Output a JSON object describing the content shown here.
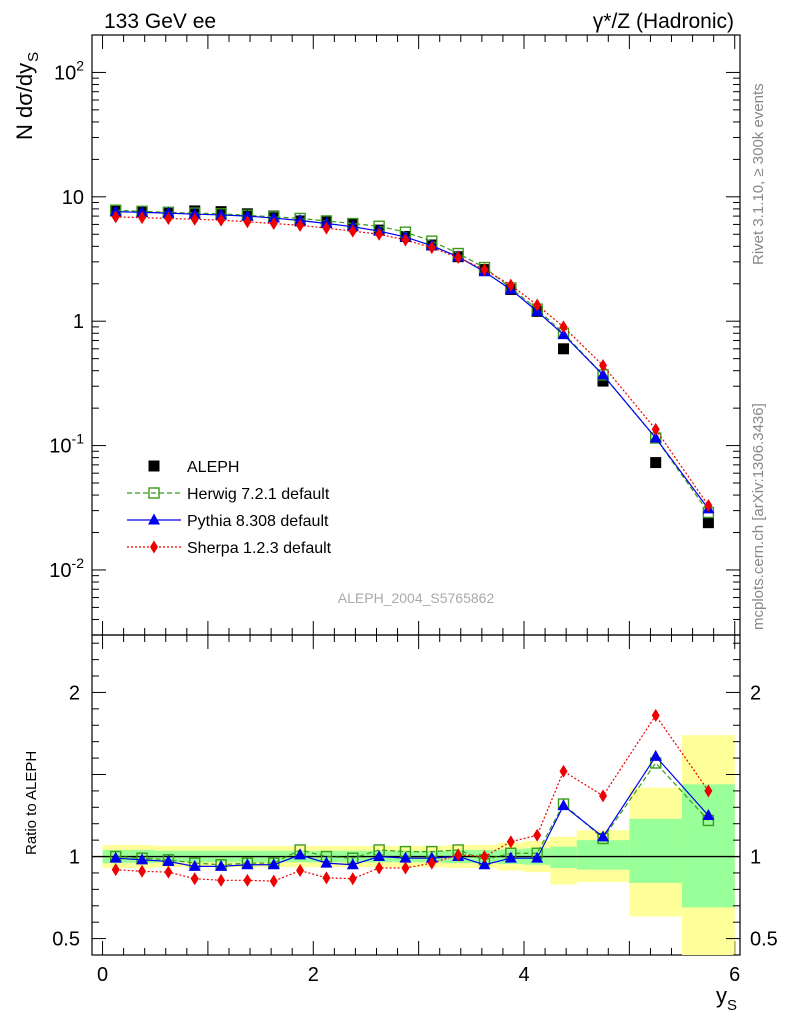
{
  "header": {
    "left": "133 GeV ee",
    "right": "γ*/Z (Hadronic)"
  },
  "side_labels": {
    "rivet": "Rivet 3.1.10, ≥ 300k events",
    "mcplots": "mcplots.cern.ch [arXiv:1306.3436]"
  },
  "watermark": "ALEPH_2004_S5765862",
  "chart_data": [
    {
      "type": "scatter",
      "title": "",
      "ylabel": "N dσ/dy_S",
      "ylabel_main": "N dσ/dy",
      "ylabel_sub": "S",
      "xlabel": "y_S",
      "xlabel_main": "y",
      "xlabel_sub": "S",
      "yscale": "log",
      "xlim": [
        -0.1,
        6.05
      ],
      "ylim": [
        0.003,
        200
      ],
      "x_ticks": [
        0,
        2,
        4,
        6
      ],
      "y_tick_labels": [
        "10^-2",
        "10^-1",
        "1",
        "10",
        "10^2"
      ],
      "legend_position": "bottom-left",
      "x": [
        0.125,
        0.375,
        0.625,
        0.875,
        1.125,
        1.375,
        1.625,
        1.875,
        2.125,
        2.375,
        2.625,
        2.875,
        3.125,
        3.375,
        3.625,
        3.875,
        4.125,
        4.375,
        4.75,
        5.25,
        5.75
      ],
      "series": [
        {
          "name": "ALEPH",
          "color": "#000000",
          "line": "none",
          "marker": "filled-square",
          "values": [
            7.7,
            7.6,
            7.5,
            7.7,
            7.6,
            7.3,
            7.0,
            6.4,
            6.3,
            6.0,
            5.4,
            4.8,
            4.1,
            3.3,
            2.6,
            1.8,
            1.2,
            0.6,
            0.33,
            0.073,
            0.024
          ]
        },
        {
          "name": "Herwig 7.2.1 default",
          "color": "#3a9a1a",
          "line": "dashed",
          "marker": "open-square",
          "values": [
            7.8,
            7.65,
            7.5,
            7.4,
            7.3,
            7.1,
            6.9,
            6.7,
            6.4,
            6.1,
            5.8,
            5.2,
            4.4,
            3.5,
            2.7,
            1.85,
            1.25,
            0.8,
            0.37,
            0.115,
            0.029
          ]
        },
        {
          "name": "Pythia 8.308 default",
          "color": "#0000ee",
          "line": "solid",
          "marker": "filled-triangle",
          "values": [
            7.6,
            7.5,
            7.4,
            7.25,
            7.15,
            7.0,
            6.75,
            6.45,
            6.1,
            5.75,
            5.3,
            4.75,
            4.05,
            3.3,
            2.5,
            1.8,
            1.2,
            0.78,
            0.37,
            0.115,
            0.031
          ]
        },
        {
          "name": "Sherpa 1.2.3 default",
          "color": "#ee0000",
          "line": "dotted",
          "marker": "filled-diamond",
          "values": [
            6.9,
            6.8,
            6.7,
            6.6,
            6.5,
            6.3,
            6.1,
            5.9,
            5.6,
            5.3,
            5.0,
            4.5,
            3.9,
            3.25,
            2.6,
            1.95,
            1.35,
            0.9,
            0.44,
            0.135,
            0.033
          ]
        }
      ]
    },
    {
      "type": "scatter",
      "title": "",
      "ylabel": "Ratio to ALEPH",
      "xlabel": "y_S",
      "xlim": [
        -0.1,
        6.05
      ],
      "ylim": [
        0.4,
        2.35
      ],
      "y_ticks": [
        0.5,
        1,
        2
      ],
      "x_ticks": [
        0,
        2,
        4,
        6
      ],
      "bins": [
        [
          0,
          0.25
        ],
        [
          0.25,
          0.5
        ],
        [
          0.5,
          0.75
        ],
        [
          0.75,
          1.0
        ],
        [
          1.0,
          1.25
        ],
        [
          1.25,
          1.5
        ],
        [
          1.5,
          1.75
        ],
        [
          1.75,
          2.0
        ],
        [
          2.0,
          2.25
        ],
        [
          2.25,
          2.5
        ],
        [
          2.5,
          2.75
        ],
        [
          2.75,
          3.0
        ],
        [
          3.0,
          3.25
        ],
        [
          3.25,
          3.5
        ],
        [
          3.5,
          3.75
        ],
        [
          3.75,
          4.0
        ],
        [
          4.0,
          4.25
        ],
        [
          4.25,
          4.5
        ],
        [
          4.5,
          5.0
        ],
        [
          5.0,
          5.5
        ],
        [
          5.5,
          6.0
        ]
      ],
      "band_yellow": [
        [
          0.93,
          1.07
        ],
        [
          0.93,
          1.07
        ],
        [
          0.935,
          1.065
        ],
        [
          0.935,
          1.065
        ],
        [
          0.935,
          1.065
        ],
        [
          0.935,
          1.065
        ],
        [
          0.935,
          1.065
        ],
        [
          0.935,
          1.065
        ],
        [
          0.935,
          1.065
        ],
        [
          0.935,
          1.065
        ],
        [
          0.935,
          1.065
        ],
        [
          0.935,
          1.065
        ],
        [
          0.935,
          1.065
        ],
        [
          0.93,
          1.07
        ],
        [
          0.93,
          1.07
        ],
        [
          0.915,
          1.085
        ],
        [
          0.905,
          1.095
        ],
        [
          0.83,
          1.12
        ],
        [
          0.845,
          1.16
        ],
        [
          0.635,
          1.42
        ],
        [
          0.36,
          1.74
        ]
      ],
      "band_green": [
        [
          0.96,
          1.04
        ],
        [
          0.96,
          1.04
        ],
        [
          0.965,
          1.035
        ],
        [
          0.965,
          1.035
        ],
        [
          0.965,
          1.035
        ],
        [
          0.965,
          1.035
        ],
        [
          0.965,
          1.035
        ],
        [
          0.965,
          1.035
        ],
        [
          0.965,
          1.035
        ],
        [
          0.965,
          1.035
        ],
        [
          0.965,
          1.035
        ],
        [
          0.965,
          1.035
        ],
        [
          0.965,
          1.035
        ],
        [
          0.96,
          1.04
        ],
        [
          0.96,
          1.04
        ],
        [
          0.955,
          1.045
        ],
        [
          0.95,
          1.05
        ],
        [
          0.93,
          1.06
        ],
        [
          0.92,
          1.1
        ],
        [
          0.84,
          1.23
        ],
        [
          0.69,
          1.44
        ]
      ],
      "x": [
        0.125,
        0.375,
        0.625,
        0.875,
        1.125,
        1.375,
        1.625,
        1.875,
        2.125,
        2.375,
        2.625,
        2.875,
        3.125,
        3.375,
        3.625,
        3.875,
        4.125,
        4.375,
        4.75,
        5.25,
        5.75
      ],
      "series": [
        {
          "name": "Herwig 7.2.1 default",
          "color": "#3a9a1a",
          "line": "dashed",
          "marker": "open-square",
          "values": [
            1.0,
            0.99,
            0.98,
            0.96,
            0.95,
            0.96,
            0.96,
            1.04,
            1.0,
            0.99,
            1.04,
            1.03,
            1.03,
            1.04,
            0.98,
            1.02,
            1.02,
            1.32,
            1.11,
            1.57,
            1.22
          ]
        },
        {
          "name": "Pythia 8.308 default",
          "color": "#0000ee",
          "line": "solid",
          "marker": "filled-triangle",
          "values": [
            0.99,
            0.98,
            0.97,
            0.94,
            0.94,
            0.95,
            0.95,
            1.01,
            0.96,
            0.95,
            1.0,
            0.99,
            0.99,
            1.0,
            0.95,
            0.99,
            0.99,
            1.31,
            1.12,
            1.61,
            1.25
          ]
        },
        {
          "name": "Sherpa 1.2.3 default",
          "color": "#ee0000",
          "line": "dotted",
          "marker": "filled-diamond",
          "values": [
            0.92,
            0.91,
            0.905,
            0.865,
            0.855,
            0.855,
            0.85,
            0.915,
            0.87,
            0.865,
            0.93,
            0.93,
            0.96,
            1.01,
            1.0,
            1.09,
            1.13,
            1.52,
            1.37,
            1.86,
            1.4
          ]
        }
      ]
    }
  ]
}
